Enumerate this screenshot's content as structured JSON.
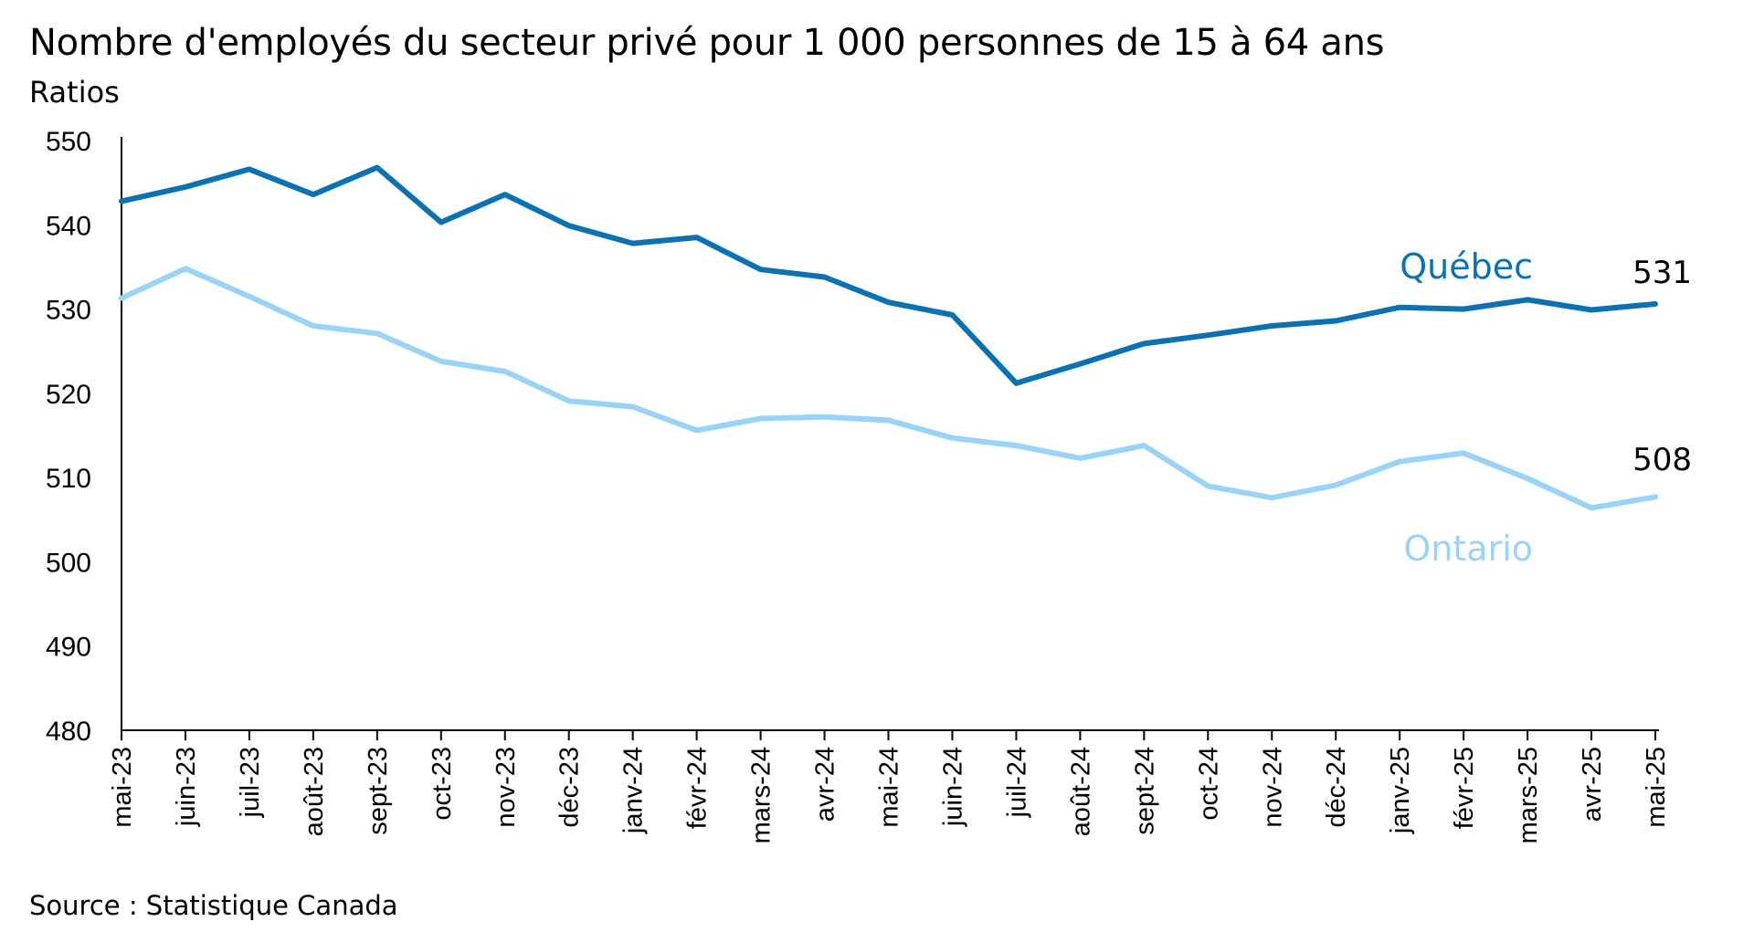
{
  "chart_data": {
    "type": "line",
    "title": "Nombre d'employés du secteur privé pour 1 000 personnes de 15 à 64 ans",
    "ylabel": "Ratios",
    "xlabel": "",
    "ylim": [
      480,
      550
    ],
    "yticks": [
      480,
      490,
      500,
      510,
      520,
      530,
      540,
      550
    ],
    "grid": false,
    "categories": [
      "mai-23",
      "juin-23",
      "juil-23",
      "août-23",
      "sept-23",
      "oct-23",
      "nov-23",
      "déc-23",
      "janv-24",
      "févr-24",
      "mars-24",
      "avr-24",
      "mai-24",
      "juin-24",
      "juil-24",
      "août-24",
      "sept-24",
      "oct-24",
      "nov-24",
      "déc-24",
      "janv-25",
      "févr-25",
      "mars-25",
      "avr-25",
      "mai-25"
    ],
    "series": [
      {
        "name": "Québec",
        "color": "#0a71b3",
        "values": [
          542.8,
          544.5,
          546.6,
          543.6,
          546.8,
          540.3,
          543.6,
          539.9,
          537.8,
          538.5,
          534.7,
          533.8,
          530.8,
          529.3,
          521.2,
          523.5,
          525.9,
          526.9,
          528.0,
          528.6,
          530.2,
          530.0,
          531.1,
          529.9,
          530.6
        ],
        "end_label": "531"
      },
      {
        "name": "Ontario",
        "color": "#99d3f8",
        "values": [
          531.3,
          534.8,
          531.5,
          528.0,
          527.1,
          523.8,
          522.6,
          519.1,
          518.4,
          515.6,
          517.0,
          517.2,
          516.8,
          514.7,
          513.8,
          512.3,
          513.8,
          509.0,
          507.6,
          509.1,
          511.9,
          512.9,
          509.9,
          506.4,
          507.7
        ],
        "end_label": "508"
      }
    ]
  },
  "source": "Source : Statistique Canada"
}
